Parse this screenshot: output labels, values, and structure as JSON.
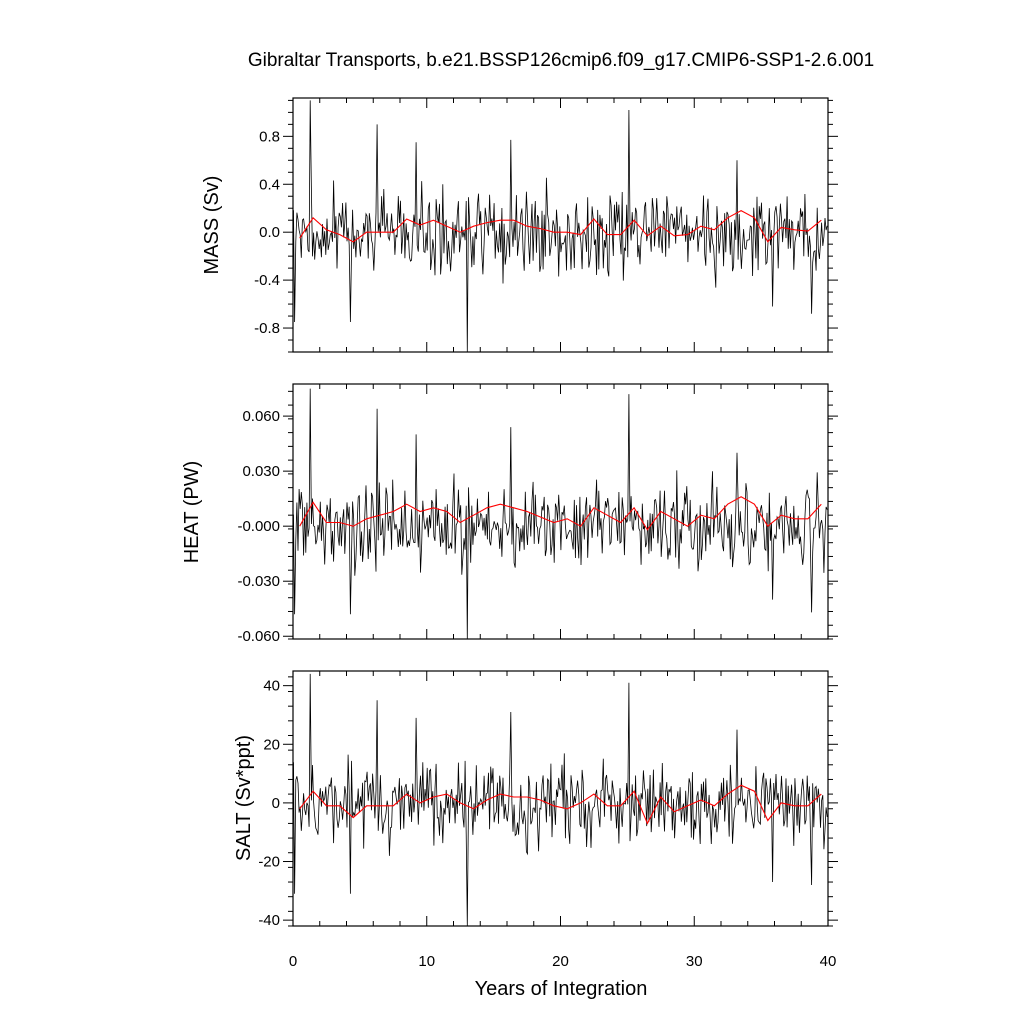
{
  "title": "Gibraltar Transports, b.e21.BSSP126cmip6.f09_g17.CMIP6-SSP1-2.6.001",
  "xlabel": "Years of Integration",
  "colors": {
    "monthly": "#000000",
    "annual": "#ff0000"
  },
  "x_ticks": [
    "0",
    "10",
    "20",
    "30",
    "40"
  ],
  "chart_data": [
    {
      "type": "line",
      "panel": "mass",
      "ylabel": "MASS (Sv)",
      "xlim": [
        0,
        40
      ],
      "ylim": [
        -1.0,
        1.12
      ],
      "yticks": [
        -0.8,
        -0.4,
        0.0,
        0.4,
        0.8
      ],
      "ytick_labels": [
        "-0.8",
        "-0.4",
        "0.0",
        "0.4",
        "0.8"
      ],
      "grid": false,
      "series": [
        {
          "color": "#000000",
          "x_start": 0.04,
          "x_step": 0.0833,
          "amplitude": 0.21,
          "spikes": [
            [
              0.1,
              -0.75
            ],
            [
              1.25,
              1.1
            ],
            [
              4.3,
              -0.75
            ],
            [
              6.25,
              0.9
            ],
            [
              9.2,
              0.75
            ],
            [
              13.0,
              -1.0
            ],
            [
              16.3,
              0.77
            ],
            [
              25.1,
              1.02
            ],
            [
              33.2,
              0.6
            ],
            [
              35.9,
              -0.62
            ],
            [
              38.8,
              -0.68
            ]
          ]
        },
        {
          "color": "#ff0000",
          "x": [
            0.5,
            1.5,
            2.5,
            3.5,
            4.5,
            5.5,
            6.5,
            7.5,
            8.5,
            9.5,
            10.5,
            11.5,
            12.5,
            13.5,
            14.5,
            15.5,
            16.5,
            17.5,
            18.5,
            19.5,
            20.5,
            21.5,
            22.5,
            23.5,
            24.5,
            25.5,
            26.5,
            27.5,
            28.5,
            29.5,
            30.5,
            31.5,
            32.5,
            33.5,
            34.5,
            35.5,
            36.5,
            37.5,
            38.5,
            39.5
          ],
          "y": [
            -0.05,
            0.12,
            0.02,
            -0.02,
            -0.08,
            0.0,
            0.0,
            0.0,
            0.11,
            0.06,
            0.1,
            0.05,
            0.0,
            0.05,
            0.08,
            0.1,
            0.1,
            0.05,
            0.03,
            0.0,
            0.0,
            -0.02,
            0.11,
            -0.02,
            -0.02,
            0.1,
            -0.03,
            0.05,
            -0.03,
            -0.02,
            0.05,
            0.02,
            0.12,
            0.18,
            0.12,
            -0.08,
            0.04,
            0.02,
            0.01,
            0.1
          ]
        }
      ]
    },
    {
      "type": "line",
      "panel": "heat",
      "ylabel": "HEAT (PW)",
      "xlim": [
        0,
        40
      ],
      "ylim": [
        -0.0615,
        0.0775
      ],
      "yticks": [
        -0.06,
        -0.03,
        0.0,
        0.03,
        0.06
      ],
      "ytick_labels": [
        "-0.060",
        "-0.030",
        "-0.000",
        "0.030",
        "0.060"
      ],
      "grid": false,
      "series": [
        {
          "color": "#000000",
          "x_start": 0.04,
          "x_step": 0.0833,
          "amplitude": 0.014,
          "spikes": [
            [
              0.1,
              -0.048
            ],
            [
              1.25,
              0.075
            ],
            [
              4.3,
              -0.048
            ],
            [
              6.25,
              0.064
            ],
            [
              9.2,
              0.05
            ],
            [
              13.0,
              -0.062
            ],
            [
              16.3,
              0.054
            ],
            [
              25.1,
              0.072
            ],
            [
              33.2,
              0.04
            ],
            [
              35.9,
              -0.04
            ],
            [
              38.8,
              -0.047
            ]
          ]
        },
        {
          "color": "#ff0000",
          "x": [
            0.5,
            1.5,
            2.5,
            3.5,
            4.5,
            5.5,
            6.5,
            7.5,
            8.5,
            9.5,
            10.5,
            11.5,
            12.5,
            13.5,
            14.5,
            15.5,
            16.5,
            17.5,
            18.5,
            19.5,
            20.5,
            21.5,
            22.5,
            23.5,
            24.5,
            25.5,
            26.5,
            27.5,
            28.5,
            29.5,
            30.5,
            31.5,
            32.5,
            33.5,
            34.5,
            35.5,
            36.5,
            37.5,
            38.5,
            39.5
          ],
          "y": [
            0.0,
            0.013,
            0.002,
            0.002,
            0.0,
            0.004,
            0.006,
            0.008,
            0.012,
            0.008,
            0.01,
            0.008,
            0.002,
            0.006,
            0.01,
            0.012,
            0.01,
            0.008,
            0.005,
            0.002,
            0.004,
            0.0,
            0.01,
            0.006,
            0.002,
            0.01,
            -0.002,
            0.008,
            0.004,
            0.0,
            0.006,
            0.004,
            0.012,
            0.016,
            0.012,
            0.0,
            0.006,
            0.004,
            0.004,
            0.012
          ]
        }
      ]
    },
    {
      "type": "line",
      "panel": "salt",
      "ylabel": "SALT (Sv*ppt)",
      "xlim": [
        0,
        40
      ],
      "ylim": [
        -42,
        45
      ],
      "yticks": [
        -40,
        -20,
        0,
        20,
        40
      ],
      "ytick_labels": [
        "-40",
        "-20",
        "0",
        "20",
        "40"
      ],
      "grid": false,
      "series": [
        {
          "color": "#000000",
          "x_start": 0.04,
          "x_step": 0.0833,
          "amplitude": 8.5,
          "spikes": [
            [
              0.1,
              -31
            ],
            [
              1.25,
              44
            ],
            [
              4.3,
              -31
            ],
            [
              6.25,
              35
            ],
            [
              9.2,
              29
            ],
            [
              13.0,
              -42
            ],
            [
              16.3,
              31
            ],
            [
              25.1,
              41
            ],
            [
              33.2,
              25
            ],
            [
              35.9,
              -27
            ],
            [
              38.8,
              -28
            ]
          ]
        },
        {
          "color": "#ff0000",
          "x": [
            0.5,
            1.5,
            2.5,
            3.5,
            4.5,
            5.5,
            6.5,
            7.5,
            8.5,
            9.5,
            10.5,
            11.5,
            12.5,
            13.5,
            14.5,
            15.5,
            16.5,
            17.5,
            18.5,
            19.5,
            20.5,
            21.5,
            22.5,
            23.5,
            24.5,
            25.5,
            26.5,
            27.5,
            28.5,
            29.5,
            30.5,
            31.5,
            32.5,
            33.5,
            34.5,
            35.5,
            36.5,
            37.5,
            38.5,
            39.5
          ],
          "y": [
            -2,
            4,
            -1,
            -1,
            -5,
            -1,
            -1,
            -1,
            3,
            0,
            2,
            3,
            0,
            -2,
            1,
            3,
            2,
            2,
            1,
            -1,
            -2,
            0,
            3,
            -1,
            -1,
            4,
            -7,
            2,
            -3,
            -1,
            1,
            -1,
            3,
            6,
            4,
            -6,
            0,
            -1,
            -1,
            3
          ]
        }
      ]
    }
  ]
}
